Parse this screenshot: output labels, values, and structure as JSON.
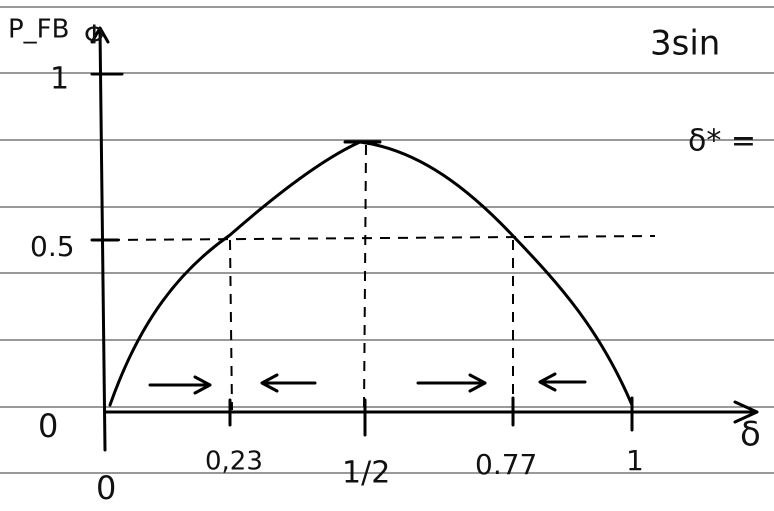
{
  "axes": {
    "y_label": "P_FB",
    "y_label2": "Φ",
    "x_label": "δ"
  },
  "y_ticks": [
    "1",
    "0.5",
    "0"
  ],
  "x_ticks": [
    "0",
    "0,23",
    "1/2",
    "0.77",
    "1"
  ],
  "annotations": [
    "3sin",
    "δ* ="
  ]
}
